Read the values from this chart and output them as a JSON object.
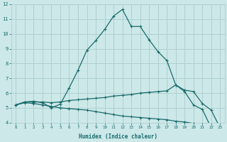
{
  "xlabel": "Humidex (Indice chaleur)",
  "xlim": [
    -0.5,
    23.5
  ],
  "ylim": [
    4,
    12
  ],
  "xticks": [
    0,
    1,
    2,
    3,
    4,
    5,
    6,
    7,
    8,
    9,
    10,
    11,
    12,
    13,
    14,
    15,
    16,
    17,
    18,
    19,
    20,
    21,
    22,
    23
  ],
  "yticks": [
    4,
    5,
    6,
    7,
    8,
    9,
    10,
    11,
    12
  ],
  "bg_color": "#cce8e8",
  "grid_color": "#b0d0d0",
  "line_color": "#1a6b6b",
  "line1_x": [
    0,
    1,
    2,
    3,
    4,
    5,
    6,
    7,
    8,
    9,
    10,
    11,
    12,
    13,
    14,
    15,
    16,
    17,
    18,
    19,
    20,
    21,
    22,
    23
  ],
  "line1_y": [
    5.2,
    5.4,
    5.45,
    5.35,
    5.0,
    5.25,
    6.35,
    7.55,
    8.9,
    9.55,
    10.3,
    11.2,
    11.65,
    10.5,
    10.5,
    9.6,
    8.8,
    8.2,
    6.55,
    6.1,
    5.2,
    4.9,
    3.65,
    3.65
  ],
  "line2_x": [
    0,
    1,
    2,
    3,
    4,
    5,
    6,
    7,
    8,
    9,
    10,
    11,
    12,
    13,
    14,
    15,
    16,
    17,
    18,
    19,
    20,
    21,
    22,
    23
  ],
  "line2_y": [
    5.2,
    5.4,
    5.4,
    5.4,
    5.35,
    5.4,
    5.5,
    5.55,
    5.6,
    5.65,
    5.7,
    5.8,
    5.85,
    5.9,
    6.0,
    6.05,
    6.1,
    6.15,
    6.55,
    6.2,
    6.1,
    5.3,
    4.85,
    3.65
  ],
  "line3_x": [
    0,
    1,
    2,
    3,
    4,
    5,
    6,
    7,
    8,
    9,
    10,
    11,
    12,
    13,
    14,
    15,
    16,
    17,
    18,
    19,
    20,
    21,
    22,
    23
  ],
  "line3_y": [
    5.2,
    5.35,
    5.3,
    5.2,
    5.1,
    5.0,
    4.95,
    4.9,
    4.85,
    4.75,
    4.65,
    4.55,
    4.45,
    4.4,
    4.35,
    4.3,
    4.25,
    4.2,
    4.1,
    4.05,
    3.95,
    3.9,
    3.7,
    3.65
  ]
}
